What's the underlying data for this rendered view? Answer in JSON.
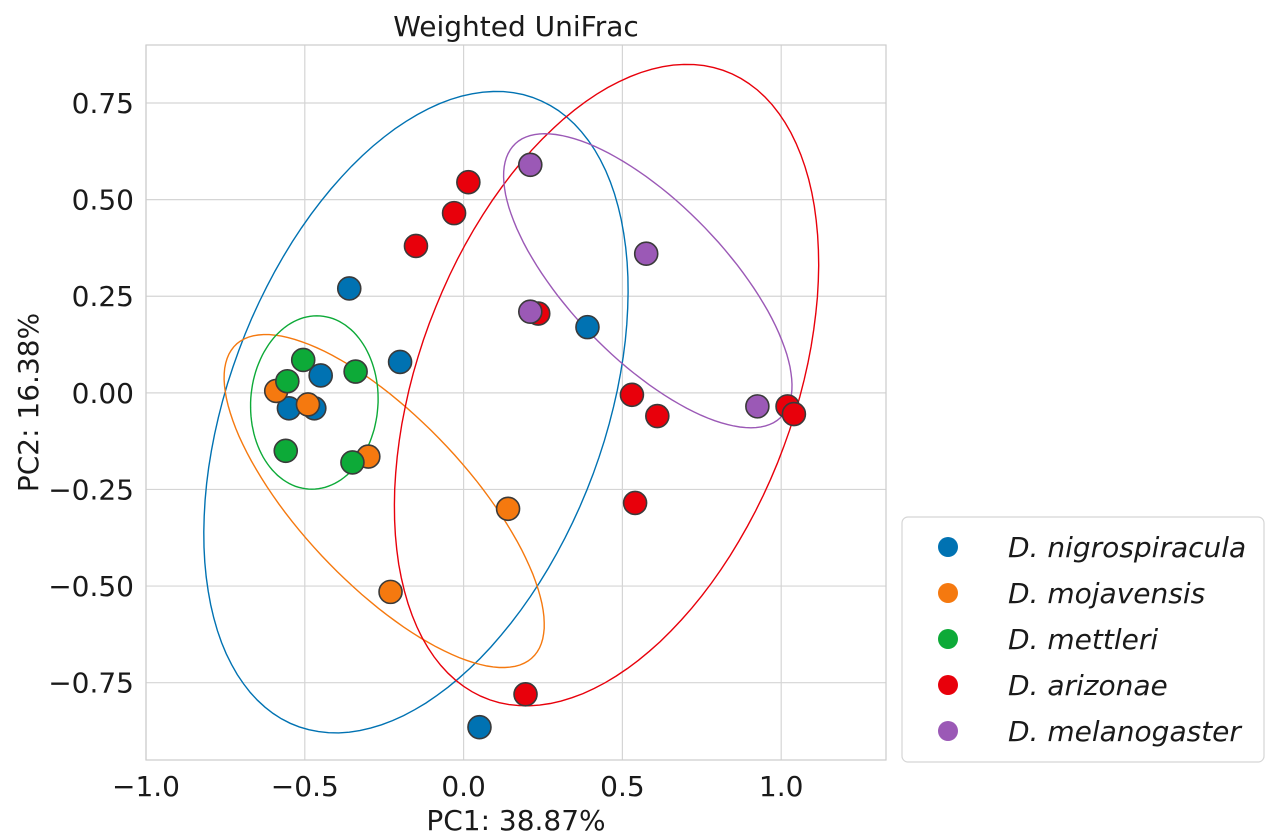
{
  "chart_data": {
    "type": "scatter",
    "title": "Weighted UniFrac",
    "xlabel": "PC1: 38.87%",
    "ylabel": "PC2: 16.38%",
    "xlim": [
      -1.0,
      1.33
    ],
    "ylim": [
      -0.95,
      0.9
    ],
    "xticks": [
      -1.0,
      -0.5,
      0.0,
      0.5,
      1.0
    ],
    "xtick_labels": [
      "−1.0",
      "−0.5",
      "0.0",
      "0.5",
      "1.0"
    ],
    "yticks": [
      0.75,
      0.5,
      0.25,
      0.0,
      -0.25,
      -0.5,
      -0.75
    ],
    "ytick_labels": [
      "0.75",
      "0.50",
      "0.25",
      "0.00",
      "−0.25",
      "−0.50",
      "−0.75"
    ],
    "grid": true,
    "legend_position": "outside-bottom-right",
    "series": [
      {
        "name": "D. nigrospiracula",
        "color": "#0072B2",
        "points": [
          [
            -0.36,
            0.27
          ],
          [
            -0.2,
            0.08
          ],
          [
            -0.45,
            0.045
          ],
          [
            -0.55,
            -0.04
          ],
          [
            -0.47,
            -0.04
          ],
          [
            0.39,
            0.17
          ],
          [
            0.05,
            -0.865
          ]
        ],
        "ellipse": {
          "cx": -0.15,
          "cy": -0.05,
          "rx": 0.9,
          "ry": 0.57,
          "angle_deg": 60
        }
      },
      {
        "name": "D. mojavensis",
        "color": "#F5790F",
        "points": [
          [
            -0.59,
            0.005
          ],
          [
            -0.49,
            -0.03
          ],
          [
            -0.3,
            -0.165
          ],
          [
            0.14,
            -0.3
          ],
          [
            -0.23,
            -0.515
          ]
        ],
        "ellipse": {
          "cx": -0.25,
          "cy": -0.28,
          "rx": 0.62,
          "ry": 0.235,
          "angle_deg": -39
        }
      },
      {
        "name": "D. mettleri",
        "color": "#0DAA38",
        "points": [
          [
            -0.505,
            0.085
          ],
          [
            -0.555,
            0.03
          ],
          [
            -0.34,
            0.055
          ],
          [
            -0.56,
            -0.15
          ],
          [
            -0.35,
            -0.18
          ]
        ],
        "ellipse": {
          "cx": -0.47,
          "cy": -0.025,
          "rx": 0.225,
          "ry": 0.2,
          "angle_deg": 80
        }
      },
      {
        "name": "D. arizonae",
        "color": "#E8000B",
        "points": [
          [
            0.015,
            0.545
          ],
          [
            -0.03,
            0.465
          ],
          [
            -0.15,
            0.38
          ],
          [
            0.235,
            0.205
          ],
          [
            0.53,
            -0.005
          ],
          [
            0.61,
            -0.06
          ],
          [
            1.02,
            -0.035
          ],
          [
            1.04,
            -0.055
          ],
          [
            0.54,
            -0.285
          ],
          [
            0.195,
            -0.78
          ]
        ],
        "ellipse": {
          "cx": 0.45,
          "cy": 0.02,
          "rx": 0.9,
          "ry": 0.57,
          "angle_deg": 60
        }
      },
      {
        "name": "D. melanogaster",
        "color": "#9B59B6",
        "points": [
          [
            0.21,
            0.59
          ],
          [
            0.575,
            0.36
          ],
          [
            0.21,
            0.21
          ],
          [
            0.925,
            -0.035
          ]
        ],
        "ellipse": {
          "cx": 0.58,
          "cy": 0.29,
          "rx": 0.55,
          "ry": 0.22,
          "angle_deg": -38
        }
      }
    ]
  }
}
